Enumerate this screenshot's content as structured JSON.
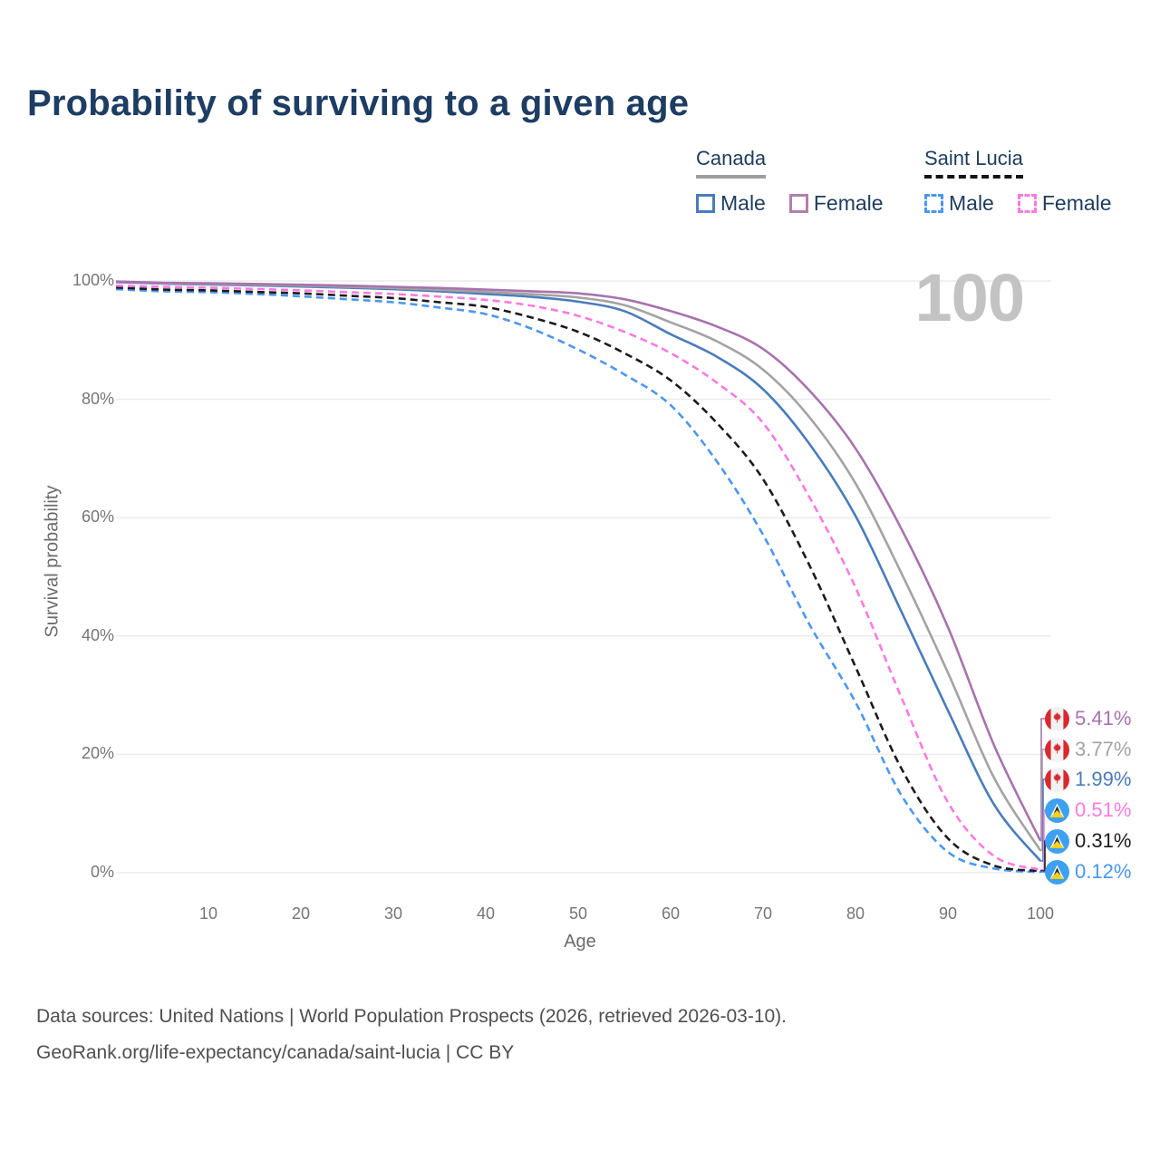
{
  "title": "Probability of surviving to a given age",
  "watermark": "100",
  "legend": {
    "groups": [
      {
        "label": "Canada",
        "underline_style": "solid",
        "underline_color": "#9e9e9e",
        "items": [
          {
            "label": "Male",
            "color": "#4a7cba",
            "dashed": false
          },
          {
            "label": "Female",
            "color": "#b27fad",
            "dashed": false
          }
        ]
      },
      {
        "label": "Saint Lucia",
        "underline_style": "dashed",
        "underline_color": "#141414",
        "items": [
          {
            "label": "Male",
            "color": "#4b97f0",
            "dashed": true
          },
          {
            "label": "Female",
            "color": "#fb7ae1",
            "dashed": true
          }
        ]
      }
    ]
  },
  "chart_data": {
    "type": "line",
    "xlabel": "Age",
    "ylabel": "Survival probability",
    "xlim": [
      0,
      100
    ],
    "ylim": [
      0,
      100
    ],
    "grid": true,
    "x": [
      0,
      5,
      10,
      15,
      20,
      25,
      30,
      35,
      40,
      45,
      50,
      55,
      60,
      65,
      70,
      75,
      80,
      85,
      90,
      95,
      100
    ],
    "x_ticks": [
      10,
      20,
      30,
      40,
      50,
      60,
      70,
      80,
      90,
      100
    ],
    "y_ticks": [
      {
        "label": "100%",
        "value": 100
      },
      {
        "label": "80%",
        "value": 80
      },
      {
        "label": "60%",
        "value": 60
      },
      {
        "label": "40%",
        "value": 40
      },
      {
        "label": "20%",
        "value": 20
      },
      {
        "label": "0%",
        "value": 0
      }
    ],
    "series": [
      {
        "name": "Canada Female",
        "country": "Canada",
        "sex": "Female",
        "flag": "canada",
        "color": "#a872ae",
        "dashed": false,
        "end_label": "5.41%",
        "end_value": 5.41,
        "values": [
          99.9,
          99.7,
          99.6,
          99.5,
          99.35,
          99.2,
          99.0,
          98.8,
          98.55,
          98.25,
          97.9,
          96.9,
          94.9,
          92.3,
          88.5,
          81.5,
          71.7,
          58.0,
          41.5,
          21.5,
          5.41
        ]
      },
      {
        "name": "Canada Both sexes",
        "country": "Canada",
        "sex": "All",
        "flag": "canada",
        "color": "#a3a3a3",
        "dashed": false,
        "end_label": "3.77%",
        "end_value": 3.77,
        "values": [
          99.9,
          99.6,
          99.5,
          99.35,
          99.2,
          99.0,
          98.8,
          98.5,
          98.15,
          97.75,
          97.2,
          95.9,
          93.0,
          89.8,
          85.0,
          77.0,
          65.8,
          50.5,
          33.8,
          16.0,
          3.77
        ]
      },
      {
        "name": "Canada Male",
        "country": "Canada",
        "sex": "Male",
        "flag": "canada",
        "color": "#4a7cba",
        "dashed": false,
        "end_label": "1.99%",
        "end_value": 1.99,
        "values": [
          99.8,
          99.55,
          99.4,
          99.25,
          99.05,
          98.85,
          98.6,
          98.25,
          97.8,
          97.3,
          96.5,
          94.9,
          91.0,
          87.2,
          81.7,
          72.5,
          60.3,
          44.0,
          27.4,
          11.5,
          1.99
        ]
      },
      {
        "name": "Saint Lucia Female",
        "country": "Saint Lucia",
        "sex": "Female",
        "flag": "saint-lucia",
        "color": "#fb7ae1",
        "dashed": true,
        "end_label": "0.51%",
        "end_value": 0.51,
        "values": [
          99.2,
          99.0,
          98.85,
          98.65,
          98.4,
          98.1,
          97.8,
          97.35,
          96.8,
          95.8,
          94.1,
          91.4,
          87.8,
          82.8,
          76.0,
          63.5,
          48.2,
          29.5,
          11.9,
          2.8,
          0.51
        ]
      },
      {
        "name": "Saint Lucia Both sexes",
        "country": "Saint Lucia",
        "sex": "All",
        "flag": "saint-lucia",
        "color": "#1b1b1b",
        "dashed": true,
        "end_label": "0.31%",
        "end_value": 0.31,
        "values": [
          98.9,
          98.55,
          98.4,
          98.15,
          97.9,
          97.5,
          97.1,
          96.4,
          95.6,
          93.8,
          91.4,
          87.8,
          83.2,
          76.0,
          66.5,
          52.0,
          34.8,
          17.5,
          5.8,
          1.2,
          0.31
        ]
      },
      {
        "name": "Saint Lucia Male",
        "country": "Saint Lucia",
        "sex": "Male",
        "flag": "saint-lucia",
        "color": "#4b97f0",
        "dashed": true,
        "end_label": "0.12%",
        "end_value": 0.12,
        "values": [
          98.6,
          98.25,
          98.1,
          97.8,
          97.4,
          96.9,
          96.4,
          95.5,
          94.4,
          91.9,
          88.4,
          84.2,
          79.0,
          69.5,
          57.1,
          42.0,
          28.8,
          13.0,
          3.5,
          0.7,
          0.12
        ]
      }
    ],
    "legend_position": "top-right"
  },
  "footer": {
    "line1": "Data sources: United Nations | World Population Prospects (2026, retrieved 2026-03-10).",
    "line2": "GeoRank.org/life-expectancy/canada/saint-lucia | CC BY"
  }
}
